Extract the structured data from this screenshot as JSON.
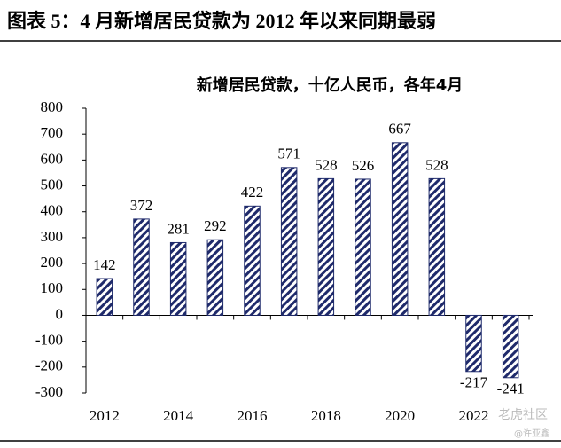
{
  "header": {
    "title": "图表 5：4 月新增居民贷款为 2012 年以来同期最弱"
  },
  "chart_data": {
    "type": "bar",
    "title": "新增居民贷款，十亿人民币，各年4月",
    "categories": [
      "2012",
      null,
      "2014",
      null,
      "2016",
      null,
      "2018",
      null,
      "2020",
      null,
      "2022",
      null
    ],
    "values": [
      142,
      372,
      281,
      292,
      422,
      571,
      528,
      526,
      667,
      528,
      -217,
      -241
    ],
    "color": "#1f2a6b",
    "ylim": [
      -300,
      800
    ],
    "yticks": [
      -300,
      -200,
      -100,
      0,
      100,
      200,
      300,
      400,
      500,
      600,
      700,
      800
    ]
  },
  "watermark": {
    "brand": "老虎社区",
    "author": "@许亚鑫"
  }
}
